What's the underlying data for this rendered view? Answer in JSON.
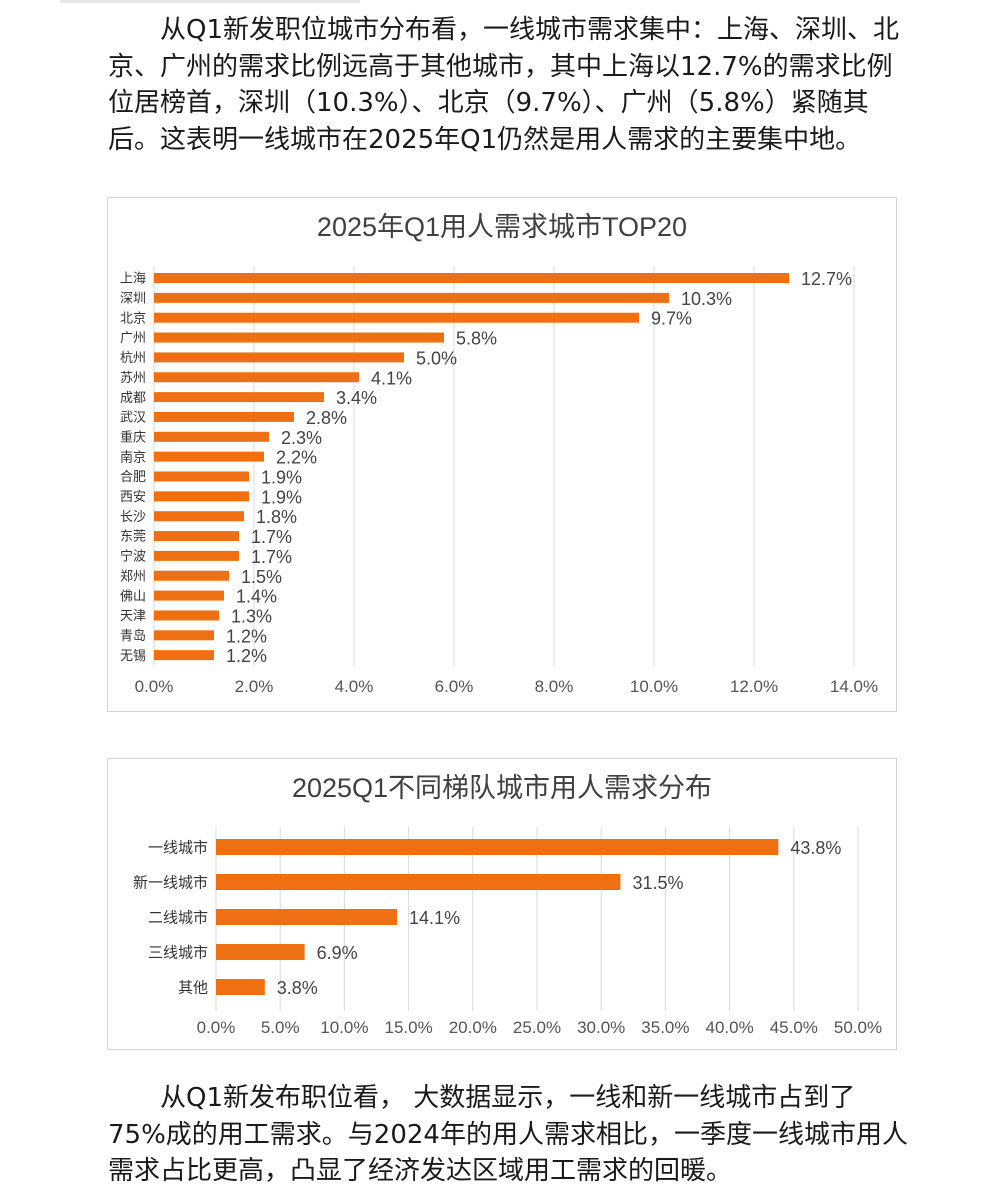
{
  "intro_text": "从Q1新发职位城市分布看，一线城市需求集中：上海、深圳、北京、广州的需求比例远高于其他城市，其中上海以12.7%的需求比例位居榜首，深圳（10.3%）、北京（9.7%）、广州（5.8%）紧随其后。这表明一线城市在2025年Q1仍然是用人需求的主要集中地。",
  "outro_text": "从Q1新发布职位看，        大数据显示，一线和新一线城市占到了75%成的用工需求。与2024年的用人需求相比，一季度一线城市用人需求占比更高，凸显了经济发达区域用工需求的回暖。",
  "colors": {
    "bar": "#EF7013",
    "grid": "#D9D9D9"
  },
  "chart_data": [
    {
      "type": "bar",
      "orientation": "horizontal",
      "title": "2025年Q1用人需求城市TOP20",
      "categories": [
        "上海",
        "深圳",
        "北京",
        "广州",
        "杭州",
        "苏州",
        "成都",
        "武汉",
        "重庆",
        "南京",
        "合肥",
        "西安",
        "长沙",
        "东莞",
        "宁波",
        "郑州",
        "佛山",
        "天津",
        "青岛",
        "无锡"
      ],
      "values": [
        12.7,
        10.3,
        9.7,
        5.8,
        5.0,
        4.1,
        3.4,
        2.8,
        2.3,
        2.2,
        1.9,
        1.9,
        1.8,
        1.7,
        1.7,
        1.5,
        1.4,
        1.3,
        1.2,
        1.2
      ],
      "value_labels": [
        "12.7%",
        "10.3%",
        "9.7%",
        "5.8%",
        "5.0%",
        "4.1%",
        "3.4%",
        "2.8%",
        "2.3%",
        "2.2%",
        "1.9%",
        "1.9%",
        "1.8%",
        "1.7%",
        "1.7%",
        "1.5%",
        "1.4%",
        "1.3%",
        "1.2%",
        "1.2%"
      ],
      "xlim": [
        0,
        14
      ],
      "ticks": [
        "0.0%",
        "2.0%",
        "4.0%",
        "6.0%",
        "8.0%",
        "10.0%",
        "12.0%",
        "14.0%"
      ],
      "grid": true,
      "legend": "none"
    },
    {
      "type": "bar",
      "orientation": "horizontal",
      "title": "2025Q1不同梯队城市用人需求分布",
      "categories": [
        "一线城市",
        "新一线城市",
        "二线城市",
        "三线城市",
        "其他"
      ],
      "values": [
        43.8,
        31.5,
        14.1,
        6.9,
        3.8
      ],
      "value_labels": [
        "43.8%",
        "31.5%",
        "14.1%",
        "6.9%",
        "3.8%"
      ],
      "xlim": [
        0,
        50
      ],
      "ticks": [
        "0.0%",
        "5.0%",
        "10.0%",
        "15.0%",
        "20.0%",
        "25.0%",
        "30.0%",
        "35.0%",
        "40.0%",
        "45.0%",
        "50.0%"
      ],
      "grid": true,
      "legend": "none"
    }
  ]
}
